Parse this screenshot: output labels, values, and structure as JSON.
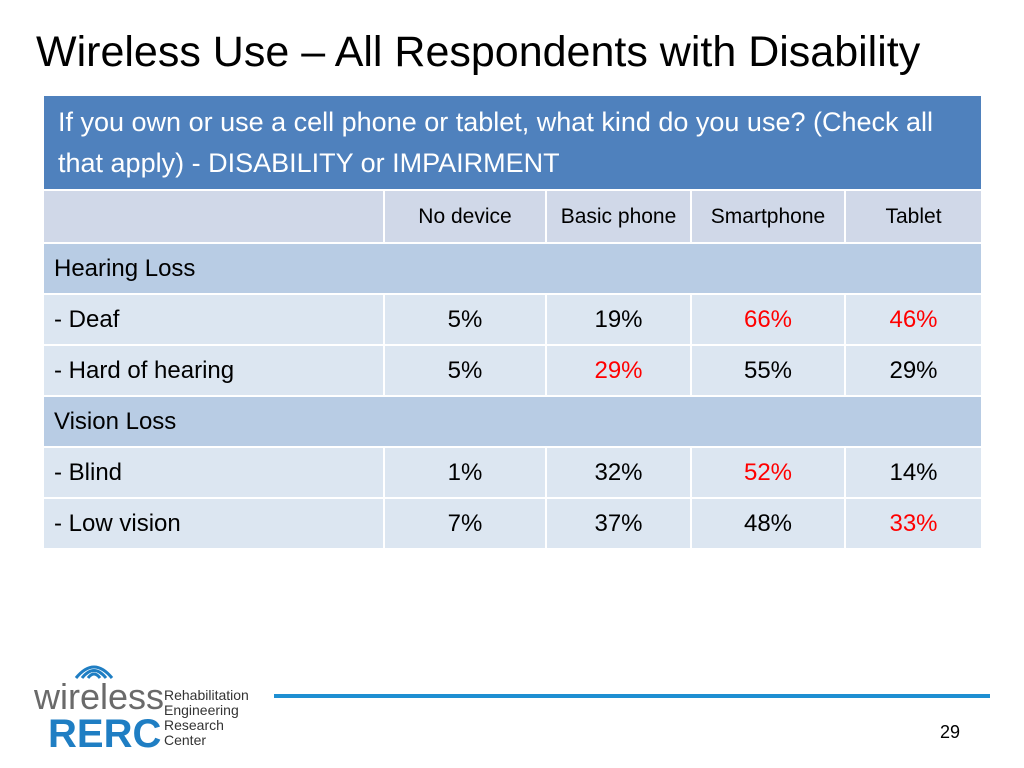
{
  "title": "Wireless Use – All Respondents with Disability",
  "table": {
    "question": "If you own or use a cell phone or tablet, what kind do you use? (Check all that apply)  - DISABILITY or IMPAIRMENT",
    "columns": [
      "",
      "No device",
      "Basic phone",
      "Smartphone",
      "Tablet"
    ],
    "groups": [
      {
        "label": "Hearing Loss",
        "rows": [
          {
            "label": "- Deaf",
            "values": [
              "5%",
              "19%",
              "66%",
              "46%"
            ],
            "highlight": [
              false,
              false,
              true,
              true
            ]
          },
          {
            "label": "- Hard of hearing",
            "values": [
              "5%",
              "29%",
              "55%",
              "29%"
            ],
            "highlight": [
              false,
              true,
              false,
              false
            ]
          }
        ]
      },
      {
        "label": "Vision Loss",
        "rows": [
          {
            "label": "- Blind",
            "values": [
              "1%",
              "32%",
              "52%",
              "14%"
            ],
            "highlight": [
              false,
              false,
              true,
              false
            ]
          },
          {
            "label": "- Low vision",
            "values": [
              "7%",
              "37%",
              "48%",
              "33%"
            ],
            "highlight": [
              false,
              false,
              false,
              true
            ]
          }
        ]
      }
    ]
  },
  "colors": {
    "header_blue": "#4f81bd",
    "highlight_red": "#ff0000",
    "footer_line": "#1e8fd2",
    "logo_blue": "#1f7ec3"
  },
  "logo": {
    "wordmark_top": "wireless",
    "wordmark_bottom": "RERC",
    "subtitle_lines": [
      "Rehabilitation",
      "Engineering",
      "Research",
      "Center"
    ],
    "icon": "wifi-signal-icon"
  },
  "page_number": "29"
}
